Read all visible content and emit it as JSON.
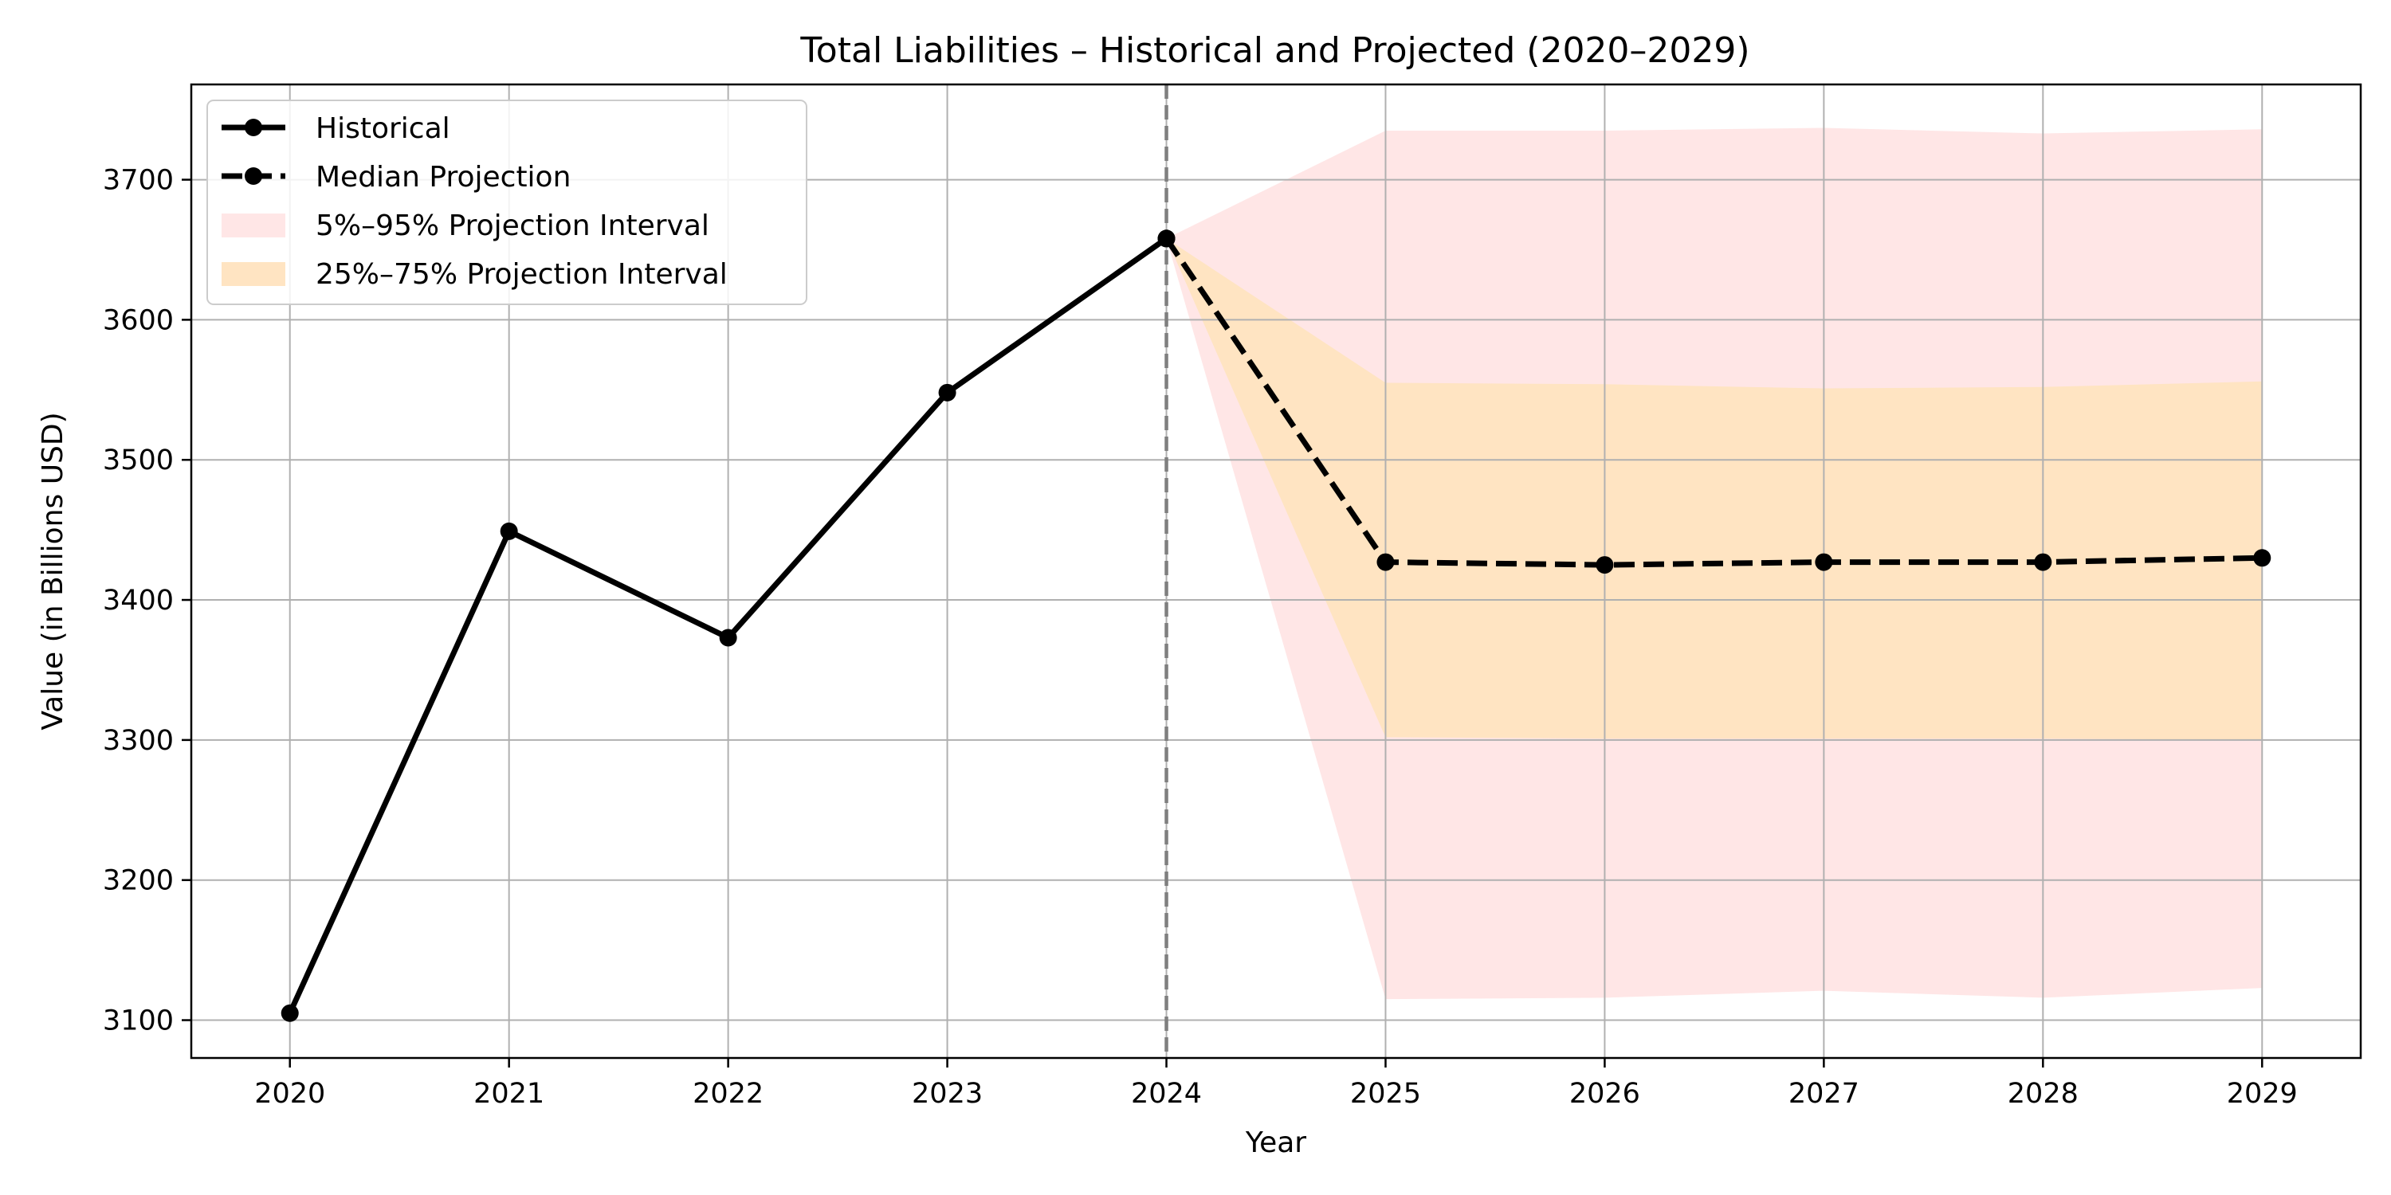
{
  "chart_data": {
    "type": "line",
    "title": "Total Liabilities – Historical and Projected (2020–2029)",
    "xlabel": "Year",
    "ylabel": "Value (in Billions USD)",
    "xlim": [
      2019.55,
      2029.45
    ],
    "ylim": [
      3073,
      3768
    ],
    "x_ticks": [
      2020,
      2021,
      2022,
      2023,
      2024,
      2025,
      2026,
      2027,
      2028,
      2029
    ],
    "y_ticks": [
      3100,
      3200,
      3300,
      3400,
      3500,
      3600,
      3700
    ],
    "grid": true,
    "legend_position": "top-left",
    "marker_line_x": 2024,
    "series": [
      {
        "name": "Historical",
        "style": "solid",
        "color": "#000000",
        "x": [
          2020,
          2021,
          2022,
          2023,
          2024
        ],
        "values": [
          3105,
          3449,
          3373,
          3548,
          3658
        ]
      },
      {
        "name": "Median Projection",
        "style": "dashed",
        "color": "#000000",
        "x": [
          2024,
          2025,
          2026,
          2027,
          2028,
          2029
        ],
        "values": [
          3658,
          3427,
          3425,
          3427,
          3427,
          3430
        ]
      }
    ],
    "bands": [
      {
        "name": "5%–95% Projection Interval",
        "color": "#ffe6e6",
        "x": [
          2024,
          2025,
          2026,
          2027,
          2028,
          2029
        ],
        "lower": [
          3658,
          3115,
          3116,
          3121,
          3116,
          3123
        ],
        "upper": [
          3658,
          3735,
          3735,
          3737,
          3733,
          3736
        ]
      },
      {
        "name": "25%–75% Projection Interval",
        "color": "#ffe4c2",
        "x": [
          2024,
          2025,
          2026,
          2027,
          2028,
          2029
        ],
        "lower": [
          3658,
          3302,
          3301,
          3301,
          3301,
          3300
        ],
        "upper": [
          3658,
          3555,
          3554,
          3551,
          3552,
          3556
        ]
      }
    ]
  }
}
